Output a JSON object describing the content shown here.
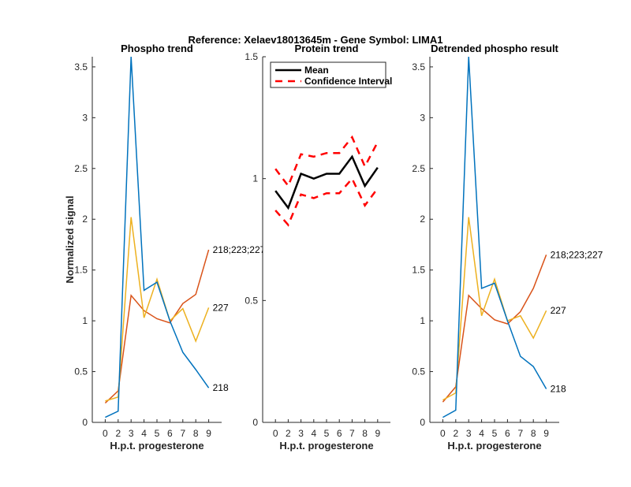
{
  "chart_data": {
    "title": "Reference:  Xelaev18013645m - Gene Symbol:  LIMA1",
    "ylabel": "Normalized signal",
    "colors": {
      "218": "#0072BD",
      "218;223;227": "#D95319",
      "227": "#EDB120",
      "mean": "#000000",
      "ci": "#FF0000"
    },
    "panels": [
      {
        "title": "Phospho trend",
        "type": "line",
        "xlabel": "H.p.t. progesterone",
        "categories": [
          "0",
          "2",
          "3",
          "4",
          "5",
          "6",
          "7",
          "8",
          "9"
        ],
        "ylim": [
          0,
          3.6
        ],
        "yticks": [
          "0",
          "0.5",
          "1",
          "1.5",
          "2",
          "2.5",
          "3",
          "3.5"
        ],
        "series": [
          {
            "name": "218;223;227",
            "values": [
              0.19,
              0.31,
              1.25,
              1.1,
              1.02,
              0.98,
              1.17,
              1.26,
              1.7
            ]
          },
          {
            "name": "227",
            "values": [
              0.21,
              0.25,
              2.02,
              1.03,
              1.41,
              1.0,
              1.12,
              0.8,
              1.13
            ]
          },
          {
            "name": "218",
            "values": [
              0.05,
              0.11,
              3.6,
              1.3,
              1.38,
              1.0,
              0.69,
              0.52,
              0.34
            ]
          }
        ]
      },
      {
        "title": "Protein trend",
        "type": "line",
        "xlabel": "H.p.t. progesterone",
        "categories": [
          "0",
          "2",
          "3",
          "4",
          "5",
          "6",
          "7",
          "8",
          "9"
        ],
        "ylim": [
          0,
          1.5
        ],
        "yticks": [
          "0",
          "0.5",
          "1",
          "1.5"
        ],
        "legend": {
          "position": "top-left",
          "entries": [
            "Mean",
            "Confidence Interval"
          ]
        },
        "series": [
          {
            "name": "Mean",
            "values": [
              0.95,
              0.88,
              1.02,
              1.0,
              1.02,
              1.02,
              1.09,
              0.97,
              1.045
            ]
          },
          {
            "name": "Confidence Interval upper",
            "values": [
              1.04,
              0.97,
              1.1,
              1.09,
              1.105,
              1.105,
              1.17,
              1.05,
              1.15
            ]
          },
          {
            "name": "Confidence Interval lower",
            "values": [
              0.87,
              0.81,
              0.935,
              0.92,
              0.94,
              0.94,
              1.0,
              0.89,
              0.96
            ]
          }
        ]
      },
      {
        "title": "Detrended phospho result",
        "type": "line",
        "xlabel": "H.p.t. progesterone",
        "categories": [
          "0",
          "2",
          "3",
          "4",
          "5",
          "6",
          "7",
          "8",
          "9"
        ],
        "ylim": [
          0,
          3.6
        ],
        "yticks": [
          "0",
          "0.5",
          "1",
          "1.5",
          "2",
          "2.5",
          "3",
          "3.5"
        ],
        "series": [
          {
            "name": "218;223;227",
            "values": [
              0.2,
              0.35,
              1.25,
              1.12,
              1.01,
              0.97,
              1.09,
              1.32,
              1.65
            ]
          },
          {
            "name": "227",
            "values": [
              0.22,
              0.29,
              2.02,
              1.05,
              1.41,
              1.0,
              1.05,
              0.83,
              1.1
            ]
          },
          {
            "name": "218",
            "values": [
              0.05,
              0.12,
              3.6,
              1.32,
              1.37,
              1.0,
              0.65,
              0.55,
              0.33
            ]
          }
        ]
      }
    ]
  }
}
